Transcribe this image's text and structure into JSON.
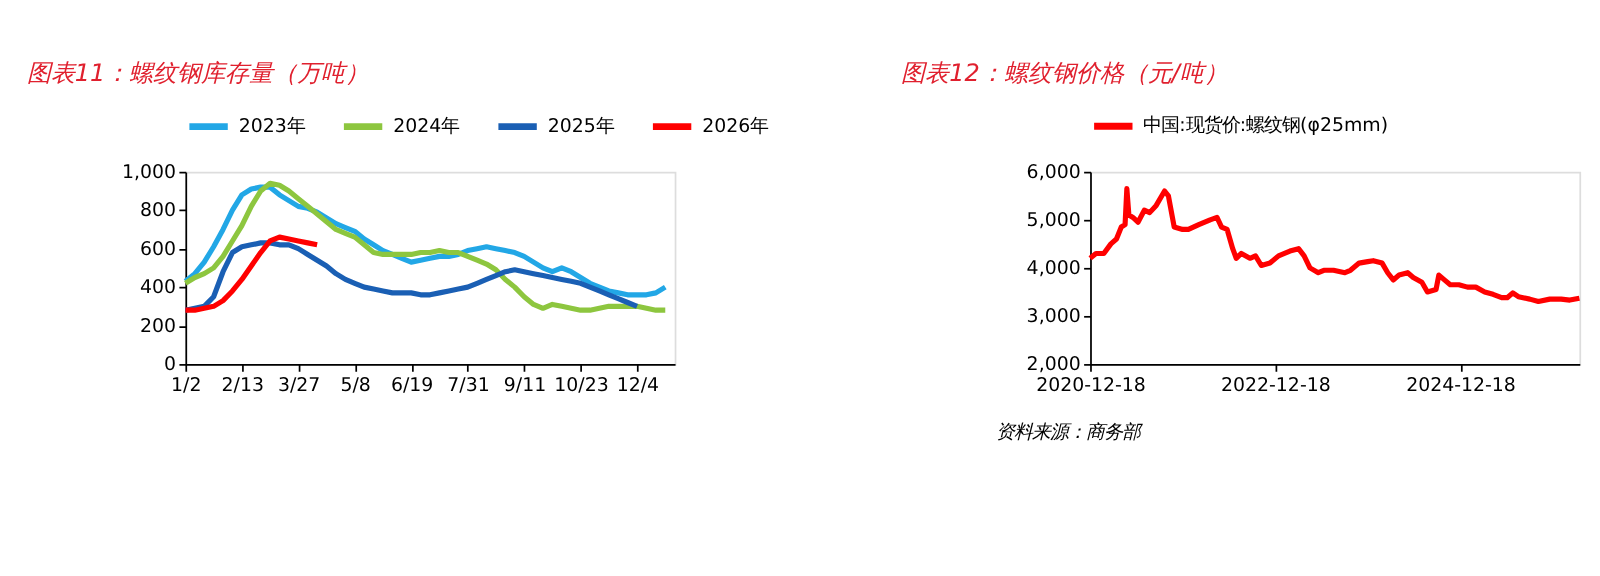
{
  "chart_data": [
    {
      "type": "line",
      "title": "图表11：螺纹钢库存量（万吨）",
      "legend": "top",
      "categories": [
        "1/2",
        null,
        null,
        null,
        null,
        null,
        "2/13",
        null,
        null,
        null,
        null,
        null,
        "3/27",
        null,
        null,
        null,
        null,
        null,
        "5/8",
        null,
        null,
        null,
        null,
        null,
        "6/19",
        null,
        null,
        null,
        null,
        null,
        "7/31",
        null,
        null,
        null,
        null,
        null,
        "9/11",
        null,
        null,
        null,
        null,
        null,
        "10/23",
        null,
        null,
        null,
        null,
        null,
        "12/4",
        null,
        null,
        null
      ],
      "ylim": [
        0,
        1000
      ],
      "yticks": [
        {
          "value": 0,
          "label": "0"
        },
        {
          "value": 200,
          "label": "200"
        },
        {
          "value": 400,
          "label": "400"
        },
        {
          "value": 600,
          "label": "600"
        },
        {
          "value": 800,
          "label": "800"
        },
        {
          "value": 1000,
          "label": "1,000"
        }
      ],
      "series": [
        {
          "name": "2023年",
          "color": "#22a7e6",
          "values": [
            430,
            470,
            530,
            610,
            700,
            800,
            880,
            910,
            920,
            920,
            880,
            850,
            820,
            810,
            790,
            760,
            730,
            710,
            690,
            650,
            620,
            590,
            570,
            550,
            530,
            540,
            550,
            560,
            560,
            570,
            590,
            600,
            610,
            600,
            590,
            580,
            560,
            530,
            500,
            480,
            500,
            480,
            450,
            420,
            400,
            380,
            370,
            360,
            360,
            360,
            370,
            400
          ]
        },
        {
          "name": "2024年",
          "color": "#8dc63f",
          "values": [
            420,
            450,
            470,
            500,
            560,
            640,
            720,
            820,
            900,
            940,
            930,
            900,
            860,
            820,
            780,
            740,
            700,
            680,
            660,
            620,
            580,
            570,
            570,
            570,
            570,
            580,
            580,
            590,
            580,
            580,
            560,
            540,
            520,
            490,
            440,
            400,
            350,
            310,
            290,
            310,
            300,
            290,
            280,
            280,
            290,
            300,
            300,
            300,
            300,
            290,
            280,
            280
          ]
        },
        {
          "name": "2025年",
          "color": "#1a5fb4",
          "values": [
            280,
            290,
            300,
            350,
            480,
            580,
            610,
            620,
            630,
            630,
            620,
            620,
            600,
            570,
            540,
            510,
            470,
            440,
            420,
            400,
            390,
            380,
            370,
            370,
            370,
            360,
            360,
            370,
            380,
            390,
            400,
            420,
            440,
            460,
            480,
            490,
            480,
            470,
            460,
            450,
            440,
            430,
            420,
            400,
            380,
            360,
            340,
            320,
            300,
            null,
            null,
            null
          ]
        },
        {
          "name": "2026年",
          "color": "#ff0000",
          "values": [
            280,
            280,
            290,
            300,
            330,
            380,
            440,
            510,
            580,
            640,
            660,
            650,
            640,
            630,
            620,
            null,
            null,
            null,
            null,
            null,
            null,
            null,
            null,
            null,
            null,
            null,
            null,
            null,
            null,
            null,
            null,
            null,
            null,
            null,
            null,
            null,
            null,
            null,
            null,
            null,
            null,
            null,
            null,
            null,
            null,
            null,
            null,
            null,
            null,
            null,
            null,
            null
          ]
        }
      ]
    },
    {
      "type": "line",
      "title": "图表12：螺纹钢价格（元/吨）",
      "legend": "top",
      "annotations": [
        "资料来源：商务部"
      ],
      "xlim": [
        "2020-12-18",
        "2026-04-03"
      ],
      "xticks": [
        "2020-12-18",
        "2022-12-18",
        "2024-12-18"
      ],
      "ylim": [
        2000,
        6000
      ],
      "yticks": [
        {
          "value": 2000,
          "label": "2,000"
        },
        {
          "value": 3000,
          "label": "3,000"
        },
        {
          "value": 4000,
          "label": "4,000"
        },
        {
          "value": 5000,
          "label": "5,000"
        },
        {
          "value": 6000,
          "label": "6,000"
        }
      ],
      "x": [
        "2020-12-18",
        "2021-01-10",
        "2021-02-10",
        "2021-03-10",
        "2021-04-01",
        "2021-04-20",
        "2021-05-05",
        "2021-05-12",
        "2021-05-20",
        "2021-06-05",
        "2021-06-25",
        "2021-07-20",
        "2021-08-10",
        "2021-09-05",
        "2021-10-08",
        "2021-10-23",
        "2021-11-15",
        "2021-12-18",
        "2022-01-10",
        "2022-02-20",
        "2022-04-06",
        "2022-05-03",
        "2022-05-21",
        "2022-06-12",
        "2022-07-04",
        "2022-07-18",
        "2022-08-07",
        "2022-09-10",
        "2022-10-02",
        "2022-10-25",
        "2022-11-28",
        "2023-01-01",
        "2023-02-15",
        "2023-03-21",
        "2023-04-12",
        "2023-05-05",
        "2023-06-07",
        "2023-06-29",
        "2023-08-06",
        "2023-09-20",
        "2023-10-12",
        "2023-11-15",
        "2023-12-19",
        "2024-01-10",
        "2024-02-14",
        "2024-03-07",
        "2024-03-29",
        "2024-04-21",
        "2024-05-25",
        "2024-06-16",
        "2024-07-20",
        "2024-08-11",
        "2024-09-14",
        "2024-09-25",
        "2024-10-17",
        "2024-11-09",
        "2024-12-13",
        "2025-01-16",
        "2025-02-18",
        "2025-03-25",
        "2025-04-27",
        "2025-05-31",
        "2025-06-22",
        "2025-07-14",
        "2025-08-05",
        "2025-09-19",
        "2025-10-23",
        "2025-12-07",
        "2026-01-21",
        "2026-02-24",
        "2026-04-03"
      ],
      "series": [
        {
          "name": "中国:现货价:螺纹钢(φ25mm)",
          "color": "#ff0000",
          "values": [
            4200,
            4300,
            4300,
            4500,
            4600,
            4850,
            4900,
            5650,
            5100,
            5050,
            4950,
            5200,
            5150,
            5300,
            5600,
            5500,
            4850,
            4800,
            4800,
            4900,
            5000,
            5050,
            4850,
            4800,
            4400,
            4200,
            4300,
            4200,
            4250,
            4050,
            4100,
            4250,
            4350,
            4400,
            4250,
            4000,
            3900,
            3950,
            3950,
            3900,
            3950,
            4100,
            4130,
            4150,
            4100,
            3900,
            3750,
            3850,
            3900,
            3800,
            3700,
            3500,
            3550,
            3850,
            3750,
            3650,
            3650,
            3600,
            3600,
            3500,
            3450,
            3380,
            3380,
            3480,
            3400,
            3350,
            3300,
            3350,
            3350,
            3330,
            3370
          ]
        }
      ]
    }
  ]
}
